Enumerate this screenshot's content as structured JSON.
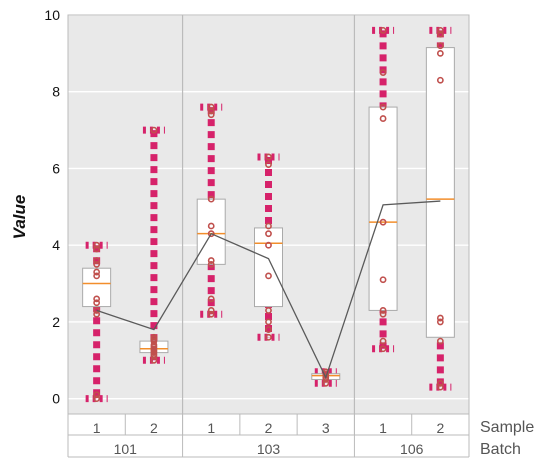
{
  "chart_data": {
    "type": "box",
    "ylabel": "Value",
    "ylim": [
      -0.4,
      10
    ],
    "yticks": [
      0,
      2,
      4,
      6,
      8,
      10
    ],
    "grid": true,
    "row_titles": [
      "Sample",
      "Batch"
    ],
    "batches": [
      {
        "name": "101",
        "samples": [
          {
            "label": "1",
            "q1": 2.4,
            "median": 3.0,
            "q3": 3.4,
            "min": 0.0,
            "max": 4.0,
            "mean": 2.3,
            "points": [
              0.0,
              0.1,
              2.2,
              2.3,
              2.5,
              2.6,
              3.2,
              3.3,
              3.5,
              3.6,
              3.9,
              4.0
            ]
          },
          {
            "label": "2",
            "q1": 1.2,
            "median": 1.3,
            "q3": 1.5,
            "min": 1.0,
            "max": 7.0,
            "mean": 1.8,
            "points": [
              1.0,
              1.1,
              1.15,
              1.2,
              1.25,
              1.3,
              1.35,
              1.4,
              1.5,
              1.55,
              1.6,
              7.0
            ]
          }
        ]
      },
      {
        "name": "103",
        "samples": [
          {
            "label": "1",
            "q1": 3.5,
            "median": 4.3,
            "q3": 5.2,
            "min": 2.2,
            "max": 7.6,
            "mean": 4.3,
            "points": [
              2.2,
              2.3,
              2.6,
              3.5,
              3.6,
              4.3,
              4.5,
              5.2,
              7.4,
              7.5,
              7.6
            ]
          },
          {
            "label": "2",
            "q1": 2.4,
            "median": 4.05,
            "q3": 4.45,
            "min": 1.6,
            "max": 6.3,
            "mean": 3.65,
            "points": [
              1.6,
              1.8,
              2.0,
              2.3,
              3.2,
              4.0,
              4.3,
              4.5,
              6.1,
              6.3
            ]
          },
          {
            "label": "3",
            "q1": 0.5,
            "median": 0.6,
            "q3": 0.65,
            "min": 0.4,
            "max": 0.7,
            "mean": 0.55,
            "points": [
              0.4,
              0.5,
              0.55,
              0.6,
              0.65,
              0.7
            ]
          }
        ]
      },
      {
        "name": "106",
        "samples": [
          {
            "label": "1",
            "q1": 2.3,
            "median": 4.6,
            "q3": 7.6,
            "min": 1.3,
            "max": 9.6,
            "mean": 5.05,
            "points": [
              1.3,
              1.5,
              2.2,
              2.3,
              3.1,
              4.6,
              7.3,
              7.6,
              8.5,
              9.6
            ]
          },
          {
            "label": "2",
            "q1": 1.6,
            "median": 5.2,
            "q3": 9.15,
            "min": 0.3,
            "max": 9.6,
            "mean": 5.15,
            "points": [
              0.3,
              0.4,
              1.5,
              2.0,
              2.1,
              8.3,
              9.0,
              9.2,
              9.5,
              9.6
            ]
          }
        ]
      }
    ],
    "colors": {
      "panel_bg": "#e9e9e9",
      "grid": "#ffffff",
      "box_fill": "#ffffff",
      "box_stroke": "#aaaaaa",
      "median": "#f28e2b",
      "whisker": "#d6226a",
      "point": "#c0504d",
      "mean_line": "#5a5a5a",
      "separator": "#bbbbbb"
    }
  }
}
